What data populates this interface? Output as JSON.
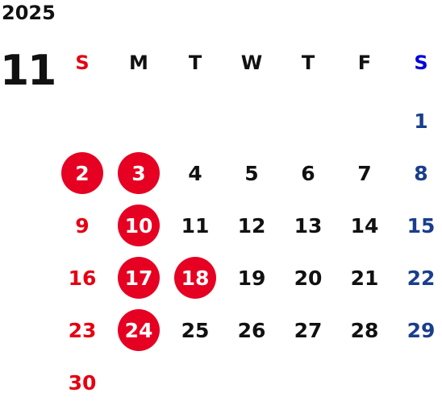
{
  "year": "2025",
  "month": "11",
  "weekdays": [
    "S",
    "M",
    "T",
    "W",
    "T",
    "F",
    "S"
  ],
  "weeks": [
    [
      "",
      "",
      "",
      "",
      "",
      "",
      "1"
    ],
    [
      "2",
      "3",
      "4",
      "5",
      "6",
      "7",
      "8"
    ],
    [
      "9",
      "10",
      "11",
      "12",
      "13",
      "14",
      "15"
    ],
    [
      "16",
      "17",
      "18",
      "19",
      "20",
      "21",
      "22"
    ],
    [
      "23",
      "24",
      "25",
      "26",
      "27",
      "28",
      "29"
    ],
    [
      "30",
      "",
      "",
      "",
      "",
      "",
      ""
    ]
  ],
  "holidays": [
    "2",
    "3",
    "10",
    "17",
    "18",
    "24"
  ],
  "colors": {
    "sunday": "#e60012",
    "saturday_text": "#1a3e8c",
    "saturday_header": "#0000e0",
    "holiday_circle": "#e60022",
    "weekday": "#111111"
  }
}
